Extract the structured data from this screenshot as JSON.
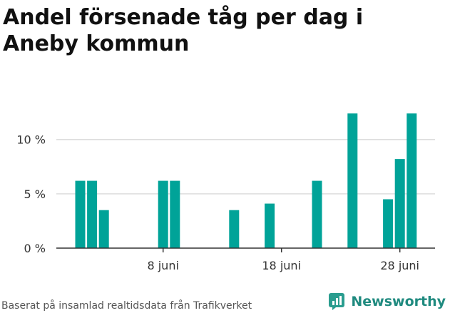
{
  "title": "Andel försenade tåg per dag i Aneby kommun",
  "footer": "Baserat på insamlad realtidsdata från Trafikverket",
  "brand": {
    "name": "Newsworthy",
    "icon": "newsworthy-logo-icon",
    "color": "#2a9d8f"
  },
  "colors": {
    "bar": "#00a398",
    "grid": "#dddddd",
    "axis": "#333333"
  },
  "chart_data": {
    "type": "bar",
    "title": "Andel försenade tåg per dag i Aneby kommun",
    "xlabel": "",
    "ylabel": "",
    "ylim": [
      0,
      13
    ],
    "y_ticks": [
      {
        "value": 0,
        "label": "0 %"
      },
      {
        "value": 5,
        "label": "5 %"
      },
      {
        "value": 10,
        "label": "10 %"
      }
    ],
    "x_domain": [
      1,
      30
    ],
    "x_ticks": [
      {
        "value": 8,
        "label": "8 juni"
      },
      {
        "value": 18,
        "label": "18 juni"
      },
      {
        "value": 28,
        "label": "28 juni"
      }
    ],
    "grid": true,
    "bars": [
      {
        "x": 1,
        "y": 6.2
      },
      {
        "x": 2,
        "y": 6.2
      },
      {
        "x": 3,
        "y": 3.5
      },
      {
        "x": 8,
        "y": 6.2
      },
      {
        "x": 9,
        "y": 6.2
      },
      {
        "x": 14,
        "y": 3.5
      },
      {
        "x": 17,
        "y": 4.1
      },
      {
        "x": 21,
        "y": 6.2
      },
      {
        "x": 24,
        "y": 12.4
      },
      {
        "x": 27,
        "y": 4.5
      },
      {
        "x": 28,
        "y": 8.2
      },
      {
        "x": 29,
        "y": 12.4
      }
    ]
  }
}
